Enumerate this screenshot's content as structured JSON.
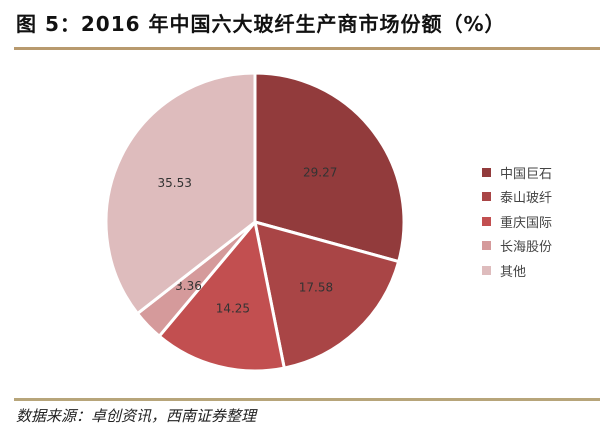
{
  "title": "图 5：2016 年中国六大玻纤生产商市场份额（%）",
  "source": "数据来源：卓创资讯，西南证券整理",
  "chart_data": {
    "type": "pie",
    "title": "图 5：2016 年中国六大玻纤生产商市场份额（%）",
    "start_angle": "12 o'clock",
    "direction": "clockwise",
    "legend_position": "right",
    "categories": [
      "中国巨石",
      "泰山玻纤",
      "重庆国际",
      "长海股份",
      "其他"
    ],
    "values": [
      29.27,
      17.58,
      14.25,
      3.36,
      35.53
    ],
    "labels": [
      "29.27",
      "17.58",
      "14.25",
      "3.36",
      "35.53"
    ],
    "colors": [
      "#923B3C",
      "#A94546",
      "#C24F50",
      "#D59A9B",
      "#DEBCBD"
    ]
  }
}
